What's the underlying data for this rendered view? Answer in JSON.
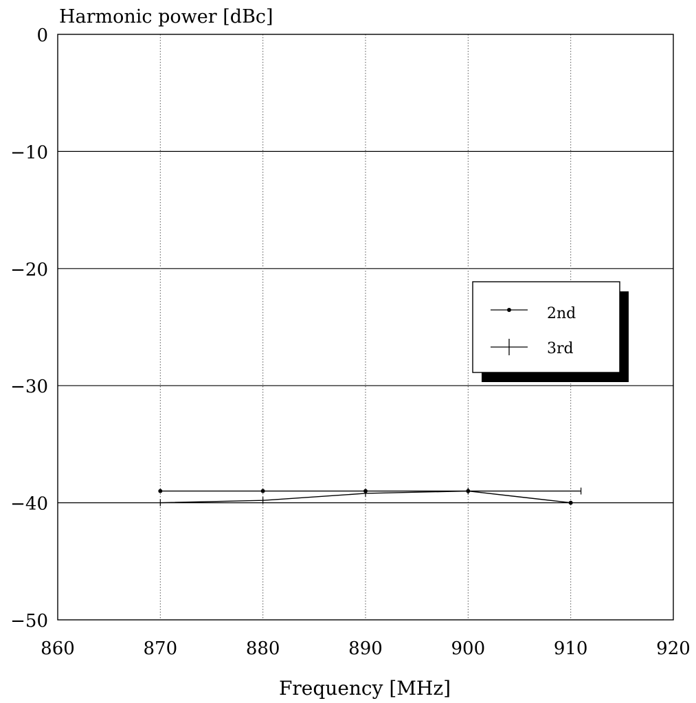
{
  "chart_data": {
    "type": "line",
    "title": "",
    "ylabel": "Harmonic power [dBc]",
    "xlabel": "Frequency [MHz]",
    "xlim": [
      860,
      920
    ],
    "ylim": [
      -50,
      0
    ],
    "xticks": [
      860,
      870,
      880,
      890,
      900,
      910,
      920
    ],
    "yticks": [
      0,
      -10,
      -20,
      -30,
      -40,
      -50
    ],
    "x_tick_labels": [
      "860",
      "870",
      "880",
      "890",
      "900",
      "910",
      "920"
    ],
    "y_tick_labels": [
      "0",
      "−10",
      "−20",
      "−30",
      "−40",
      "−50"
    ],
    "grid": {
      "horizontal": "solid",
      "vertical": "dotted"
    },
    "legend_position": "right, between -20 and -30 dBc",
    "series": [
      {
        "name": "2nd",
        "marker": "dot",
        "x": [
          870,
          880,
          890,
          900,
          910
        ],
        "y": [
          -39.0,
          -39.0,
          -39.0,
          -39.0,
          -40.0
        ]
      },
      {
        "name": "3rd",
        "marker": "plus",
        "x": [
          870,
          880,
          890,
          900,
          911
        ],
        "y": [
          -40.0,
          -39.8,
          -39.2,
          -39.0,
          -39.0
        ]
      }
    ]
  }
}
